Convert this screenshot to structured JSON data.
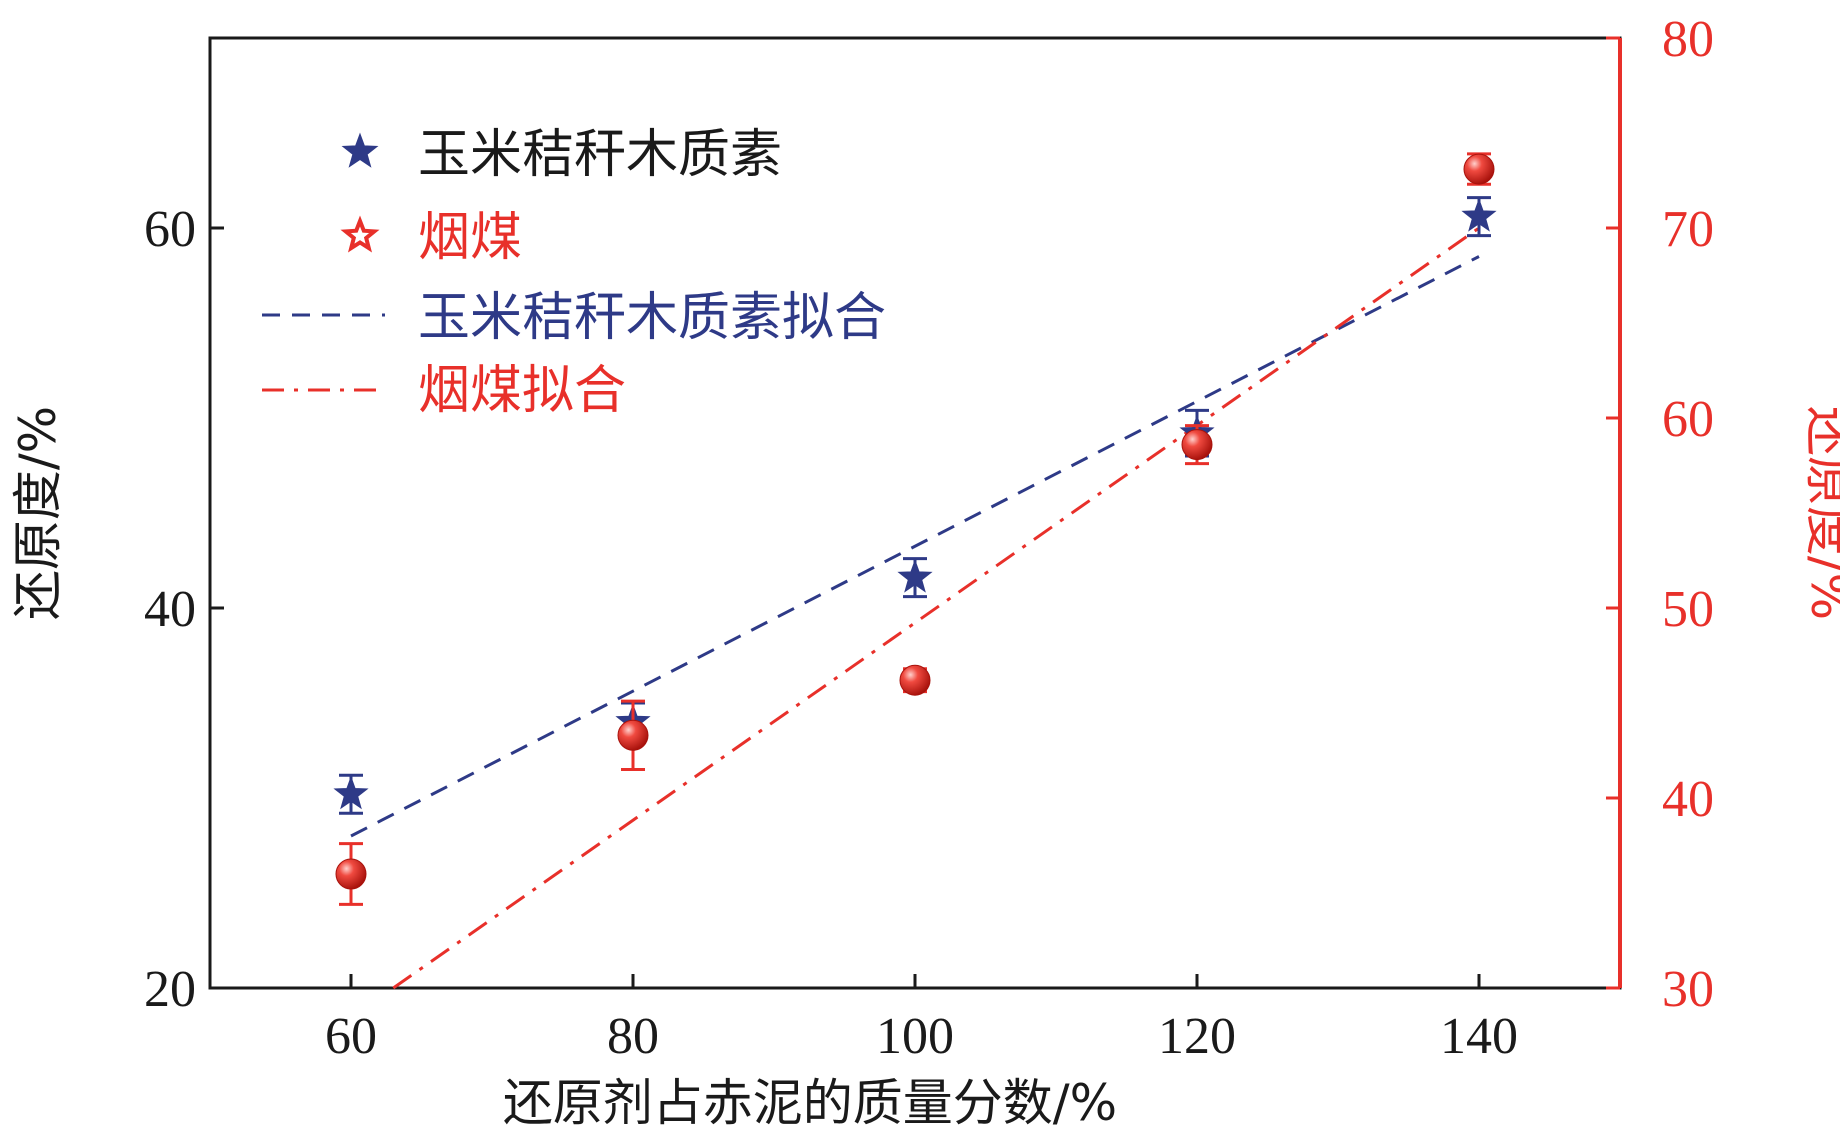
{
  "colors": {
    "axis": "#1a1a1a",
    "series_left": "#2e3a87",
    "series_right": "#e8302a"
  },
  "chart_data": {
    "type": "scatter",
    "title": "",
    "xlabel": "还原剂占赤泥的质量分数/%",
    "ylabel_left": "还原度/%",
    "ylabel_right": "还原度/%",
    "xlim": [
      50,
      150
    ],
    "ylim_left": [
      20,
      70
    ],
    "ylim_right": [
      30,
      80
    ],
    "xticks": [
      "60",
      "80",
      "100",
      "120",
      "140"
    ],
    "yticks_left": [
      "20",
      "40",
      "60"
    ],
    "yticks_right": [
      "30",
      "40",
      "50",
      "60",
      "70",
      "80"
    ],
    "legend_position": "top-left",
    "series": [
      {
        "name": "玉米秸秆木质素",
        "axis": "left",
        "marker": "star",
        "x": [
          60,
          80,
          100,
          120,
          140
        ],
        "y": [
          30.2,
          34.0,
          41.6,
          49.2,
          60.6
        ],
        "err": [
          1.0,
          1.0,
          1.0,
          1.2,
          1.0
        ]
      },
      {
        "name": "烟煤",
        "axis": "right",
        "marker": "sphere",
        "x": [
          60,
          80,
          100,
          120,
          140
        ],
        "y": [
          36.0,
          43.3,
          46.2,
          58.6,
          73.1
        ],
        "err": [
          1.6,
          1.8,
          0.6,
          1.0,
          0.8
        ]
      }
    ],
    "fits": [
      {
        "name": "玉米秸秆木质素拟合",
        "axis": "left",
        "style": "dashed",
        "x": [
          60,
          140
        ],
        "y": [
          28.0,
          58.5
        ]
      },
      {
        "name": "烟煤拟合",
        "axis": "right",
        "style": "dash-dot",
        "x": [
          63,
          140
        ],
        "y": [
          30.0,
          70.0
        ]
      }
    ]
  }
}
